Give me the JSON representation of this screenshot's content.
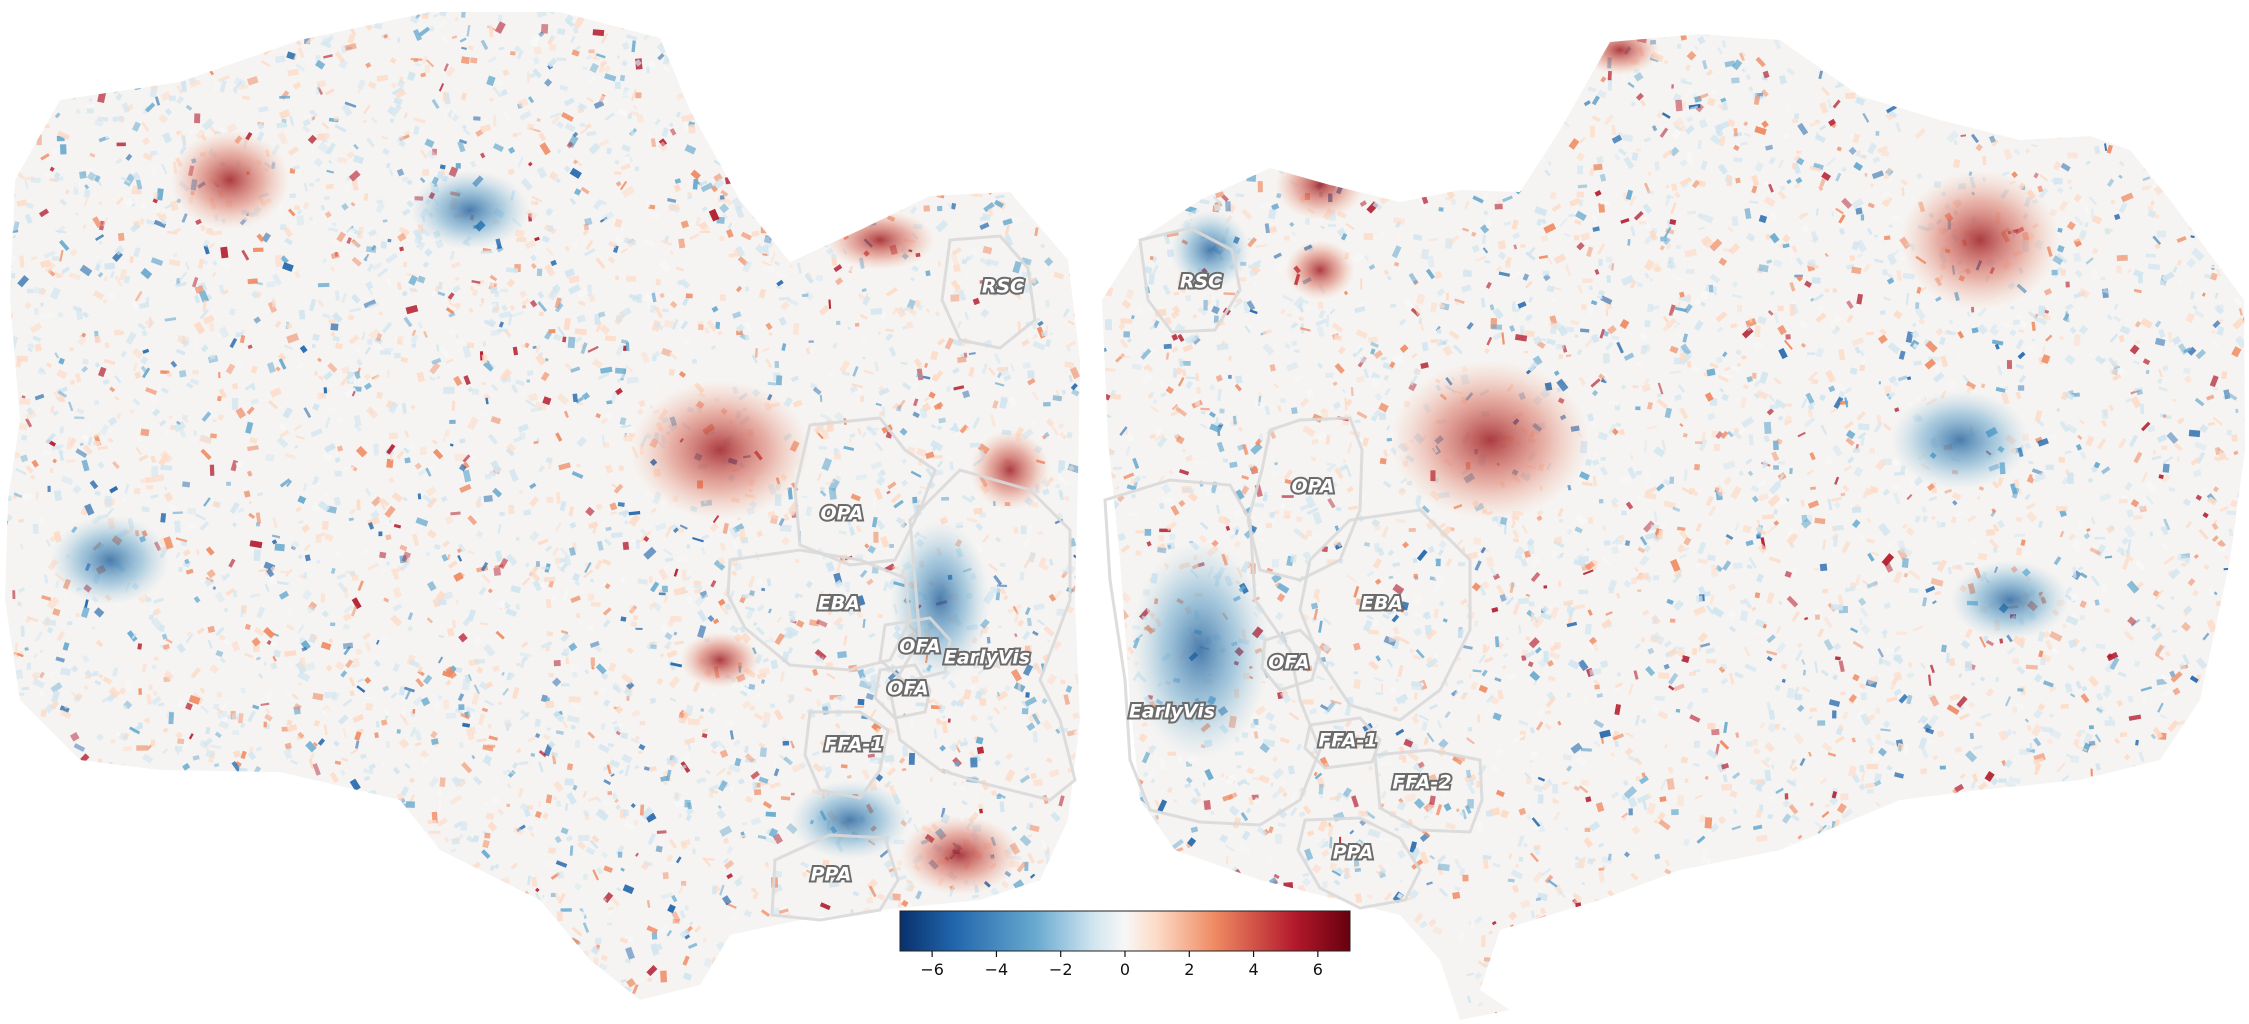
{
  "figure": {
    "hemispheres": [
      {
        "side": "left",
        "rois": [
          "RSC",
          "OPA",
          "EBA",
          "OFA",
          "EarlyVis",
          "OFA",
          "FFA-1",
          "PPA"
        ]
      },
      {
        "side": "right",
        "rois": [
          "RSC",
          "OPA",
          "EBA",
          "OFA",
          "EarlyVis",
          "FFA-1",
          "FFA-2",
          "PPA"
        ]
      }
    ],
    "colorbar": {
      "colormap": "RdBu_r",
      "colors": [
        "#08306b",
        "#2166ac",
        "#67a9cf",
        "#d1e5f0",
        "#f7f7f7",
        "#fddbc7",
        "#ef8a62",
        "#b2182b",
        "#67000d"
      ],
      "range": [
        -7,
        7
      ],
      "ticks": [
        "−6",
        "−4",
        "−2",
        "0",
        "2",
        "4",
        "6"
      ],
      "tick_values": [
        -6,
        -4,
        -2,
        0,
        2,
        4,
        6
      ]
    },
    "hotspots": {
      "red": "#c0392b",
      "blue": "#2f6fb0"
    }
  }
}
